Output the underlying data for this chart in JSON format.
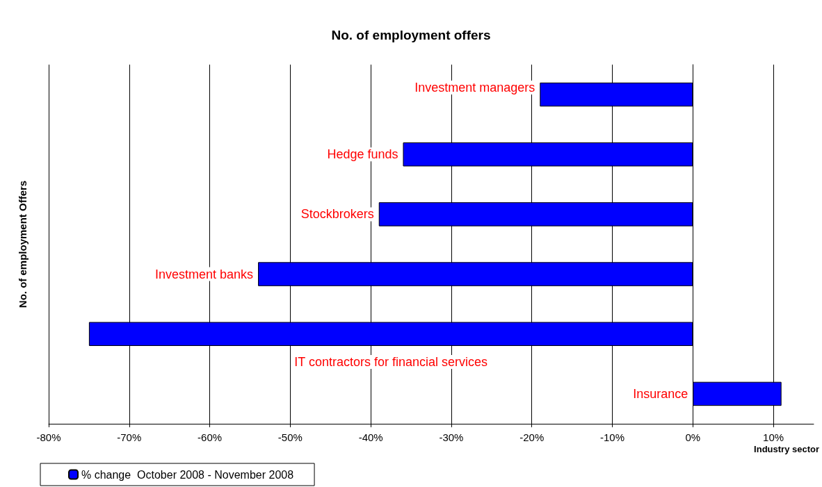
{
  "chart_data": {
    "type": "bar",
    "orientation": "horizontal",
    "title": "No. of employment offers",
    "xlabel": "Industry sector",
    "ylabel": "No. of employment Offers",
    "categories": [
      "Investment managers",
      "Hedge funds",
      "Stockbrokers",
      "Investment banks",
      "IT contractors for financial services",
      "Insurance"
    ],
    "series": [
      {
        "name": "% change  October 2008 - November 2008",
        "color": "#0000ff",
        "values": [
          -19,
          -36,
          -39,
          -54,
          -75,
          11
        ]
      }
    ],
    "xlim": [
      -80,
      15
    ],
    "xticks": [
      {
        "value": -80,
        "label": "-80%"
      },
      {
        "value": -70,
        "label": "-70%"
      },
      {
        "value": -60,
        "label": "-60%"
      },
      {
        "value": -50,
        "label": "-50%"
      },
      {
        "value": -40,
        "label": "-40%"
      },
      {
        "value": -30,
        "label": "-30%"
      },
      {
        "value": -20,
        "label": "-20%"
      },
      {
        "value": -10,
        "label": "-10%"
      },
      {
        "value": 0,
        "label": "0%"
      },
      {
        "value": 10,
        "label": "10%"
      }
    ],
    "grid": "x",
    "legend": "bottom left",
    "tick_labels": "x"
  }
}
